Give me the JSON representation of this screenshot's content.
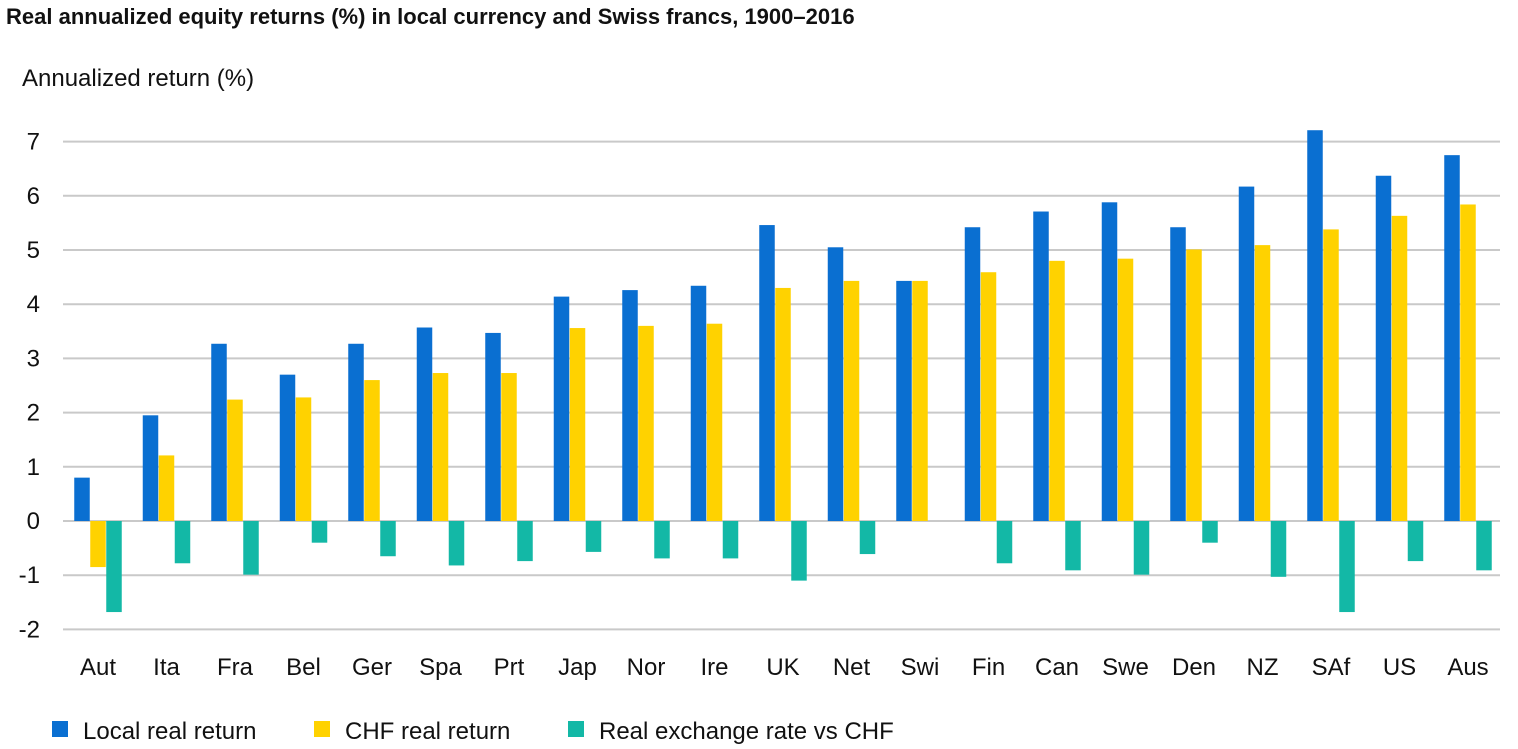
{
  "chart_data": {
    "type": "bar",
    "title": "Real annualized equity returns (%) in local currency and Swiss francs, 1900–2016",
    "ylabel": "Annualized  return  (%)",
    "xlabel": "",
    "ylim": [
      -2,
      7
    ],
    "yticks": [
      7,
      6,
      5,
      4,
      3,
      2,
      1,
      0,
      -1,
      -2
    ],
    "grid": true,
    "legend_position": "bottom-left",
    "categories": [
      "Aut",
      "Ita",
      "Fra",
      "Bel",
      "Ger",
      "Spa",
      "Prt",
      "Jap",
      "Nor",
      "Ire",
      "UK",
      "Net",
      "Swi",
      "Fin",
      "Can",
      "Swe",
      "Den",
      "NZ",
      "SAf",
      "US",
      "Aus"
    ],
    "series": [
      {
        "name": "Local real return",
        "color": "#0a6fd1",
        "values": [
          0.8,
          1.95,
          3.27,
          2.7,
          3.27,
          3.57,
          3.47,
          4.14,
          4.26,
          4.34,
          5.46,
          5.05,
          4.43,
          5.42,
          5.71,
          5.88,
          5.42,
          6.17,
          7.21,
          6.37,
          6.75
        ]
      },
      {
        "name": "CHF real return",
        "color": "#ffd200",
        "values": [
          -0.85,
          1.21,
          2.24,
          2.28,
          2.6,
          2.73,
          2.73,
          3.56,
          3.6,
          3.64,
          4.3,
          4.43,
          4.43,
          4.59,
          4.8,
          4.84,
          5.01,
          5.09,
          5.38,
          5.63,
          5.84
        ]
      },
      {
        "name": "Real exchange rate vs CHF",
        "color": "#13b8a6",
        "values": [
          -1.68,
          -0.78,
          -0.99,
          -0.4,
          -0.65,
          -0.82,
          -0.74,
          -0.57,
          -0.69,
          -0.69,
          -1.1,
          -0.61,
          0.0,
          -0.78,
          -0.91,
          -0.99,
          -0.4,
          -1.03,
          -1.68,
          -0.74,
          -0.91
        ]
      }
    ]
  }
}
